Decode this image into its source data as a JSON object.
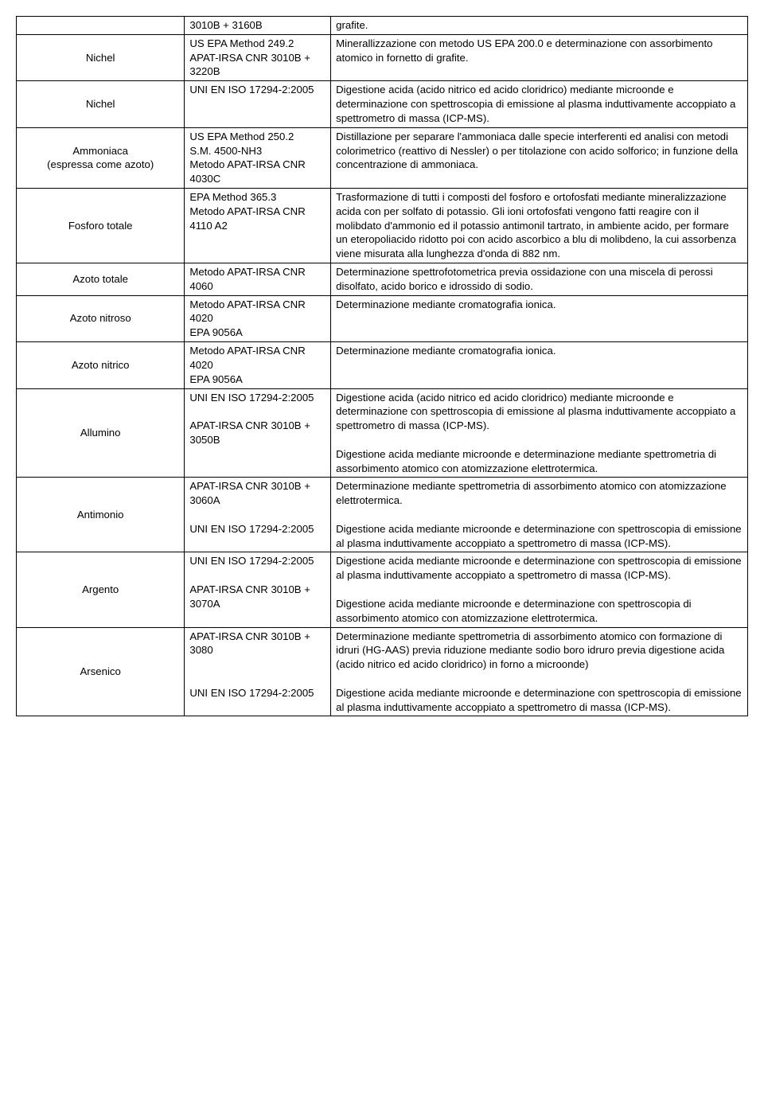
{
  "rows": [
    {
      "param": "",
      "method": "3010B + 3160B",
      "desc": "grafite."
    },
    {
      "param": "Nichel",
      "method": "US EPA Method 249.2\nAPAT-IRSA CNR 3010B + 3220B",
      "desc": "Minerallizzazione con metodo US EPA 200.0 e determinazione con assorbimento atomico in fornetto di grafite."
    },
    {
      "param": "Nichel",
      "method": "UNI EN ISO 17294-2:2005",
      "desc": "Digestione acida (acido nitrico ed acido cloridrico) mediante microonde e determinazione con spettroscopia di emissione al plasma induttivamente accoppiato a spettrometro di massa (ICP-MS)."
    },
    {
      "param": "Ammoniaca\n(espressa come azoto)",
      "method": "US EPA Method 250.2\nS.M. 4500-NH3\nMetodo APAT-IRSA CNR 4030C",
      "desc": "Distillazione per separare l'ammoniaca dalle specie interferenti ed analisi con metodi colorimetrico (reattivo di Nessler) o per titolazione con acido solforico; in funzione della concentrazione di ammoniaca."
    },
    {
      "param": "Fosforo totale",
      "method": "EPA Method 365.3\nMetodo APAT-IRSA CNR 4110 A2",
      "desc": "Trasformazione di tutti i composti del fosforo e ortofosfati mediante mineralizzazione  acida con per solfato di potassio. Gli ioni ortofosfati  vengono fatti reagire  con il molibdato d'ammonio ed il potassio antimonil tartrato, in ambiente acido, per formare un eteropoliacido ridotto poi con acido ascorbico a blu di molibdeno, la cui assorbenza viene misurata alla lunghezza d'onda di 882 nm."
    },
    {
      "param": "Azoto totale",
      "method": "Metodo APAT-IRSA CNR 4060",
      "desc": "Determinazione spettrofotometrica previa ossidazione con una miscela di perossi disolfato, acido borico e idrossido di sodio."
    },
    {
      "param": "Azoto nitroso",
      "method": "Metodo APAT-IRSA CNR 4020\nEPA 9056A",
      "desc": "Determinazione mediante cromatografia ionica."
    },
    {
      "param": "Azoto nitrico",
      "method": "Metodo APAT-IRSA CNR 4020\nEPA 9056A",
      "desc": "Determinazione mediante cromatografia ionica."
    },
    {
      "param": "Allumino",
      "method": "UNI EN ISO 17294-2:2005\n\nAPAT-IRSA CNR 3010B + 3050B",
      "desc": "Digestione acida (acido nitrico ed acido cloridrico) mediante microonde e determinazione con spettroscopia di emissione al plasma induttivamente accoppiato a spettrometro di massa (ICP-MS).\n\nDigestione acida mediante microonde e determinazione mediante spettrometria di assorbimento atomico con atomizzazione elettrotermica."
    },
    {
      "param": "Antimonio",
      "method": "APAT-IRSA CNR 3010B + 3060A\n\nUNI EN ISO 17294-2:2005",
      "desc": "Determinazione mediante spettrometria di assorbimento atomico con atomizzazione elettrotermica.\n\nDigestione acida mediante microonde e determinazione con spettroscopia di emissione al plasma induttivamente accoppiato a spettrometro di massa (ICP-MS)."
    },
    {
      "param": "Argento",
      "method": "UNI EN ISO 17294-2:2005\n\nAPAT-IRSA CNR 3010B + 3070A",
      "desc": "Digestione acida mediante microonde e determinazione con spettroscopia di emissione al plasma induttivamente accoppiato a spettrometro di massa (ICP-MS).\n\nDigestione acida mediante microonde e determinazione con spettroscopia di assorbimento atomico con atomizzazione elettrotermica."
    },
    {
      "param": "Arsenico",
      "method": "APAT-IRSA CNR 3010B + 3080\n\n\nUNI EN ISO 17294-2:2005",
      "desc": "Determinazione mediante spettrometria di assorbimento atomico con  formazione di idruri (HG-AAS) previa riduzione mediante sodio boro idruro previa digestione acida (acido nitrico ed acido cloridrico) in forno a microonde)\n\nDigestione acida mediante microonde e determinazione con spettroscopia di emissione al plasma induttivamente accoppiato a spettrometro di massa (ICP-MS)."
    }
  ]
}
